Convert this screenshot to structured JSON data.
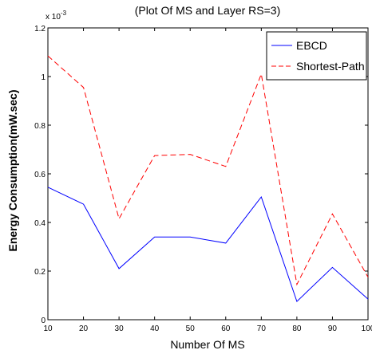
{
  "chart_data": {
    "type": "line",
    "title": "(Plot Of MS and Layer RS=3)",
    "xlabel": "Number Of MS",
    "ylabel": "Energy Consumption(mW.sec)",
    "y_multiplier": "x 10",
    "y_multiplier_exp": "-3",
    "x": [
      10,
      20,
      30,
      40,
      50,
      60,
      70,
      80,
      90,
      100
    ],
    "xlim": [
      10,
      100
    ],
    "ylim": [
      0,
      1.2
    ],
    "x_ticks": [
      "10",
      "20",
      "30",
      "40",
      "50",
      "60",
      "70",
      "80",
      "90",
      "100"
    ],
    "y_ticks": [
      "0",
      "0.2",
      "0.4",
      "0.6",
      "0.8",
      "1",
      "1.2"
    ],
    "grid": false,
    "legend_position": "top-right",
    "series": [
      {
        "name": "EBCD",
        "color": "#0000ff",
        "style": "solid",
        "values": [
          0.545,
          0.475,
          0.21,
          0.34,
          0.34,
          0.315,
          0.505,
          0.075,
          0.215,
          0.085
        ]
      },
      {
        "name": "Shortest-Path",
        "color": "#ff0000",
        "style": "dashed",
        "values": [
          1.085,
          0.955,
          0.415,
          0.675,
          0.68,
          0.63,
          1.01,
          0.145,
          0.435,
          0.175
        ]
      }
    ]
  }
}
